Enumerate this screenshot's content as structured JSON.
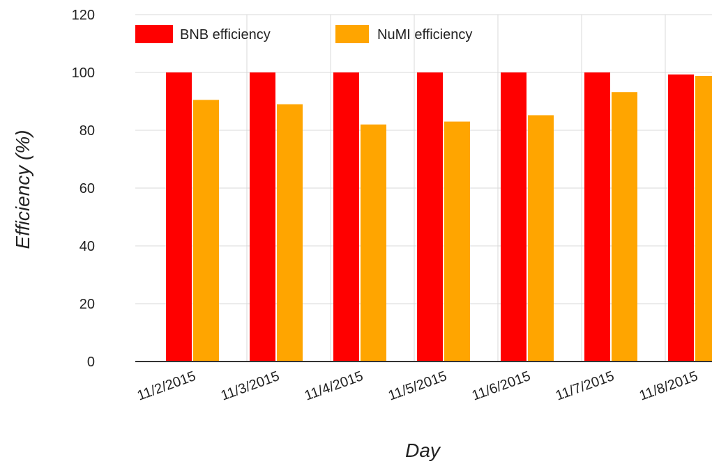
{
  "chart_data": {
    "type": "bar",
    "title": "",
    "xlabel": "Day",
    "ylabel": "Efficiency (%)",
    "ylim": [
      0,
      120
    ],
    "yticks": [
      0,
      20,
      40,
      60,
      80,
      100,
      120
    ],
    "categories": [
      "11/2/2015",
      "11/3/2015",
      "11/4/2015",
      "11/5/2015",
      "11/6/2015",
      "11/7/2015",
      "11/8/2015"
    ],
    "series": [
      {
        "name": "BNB efficiency",
        "color": "#ff0000",
        "values": [
          100,
          100,
          100,
          100,
          100,
          100,
          99.3
        ]
      },
      {
        "name": "NuMI efficiency",
        "color": "#ffa500",
        "values": [
          90.5,
          89,
          82,
          83,
          85.2,
          93.2,
          98.8
        ]
      }
    ],
    "grid": true,
    "legend_position": "top-left"
  }
}
